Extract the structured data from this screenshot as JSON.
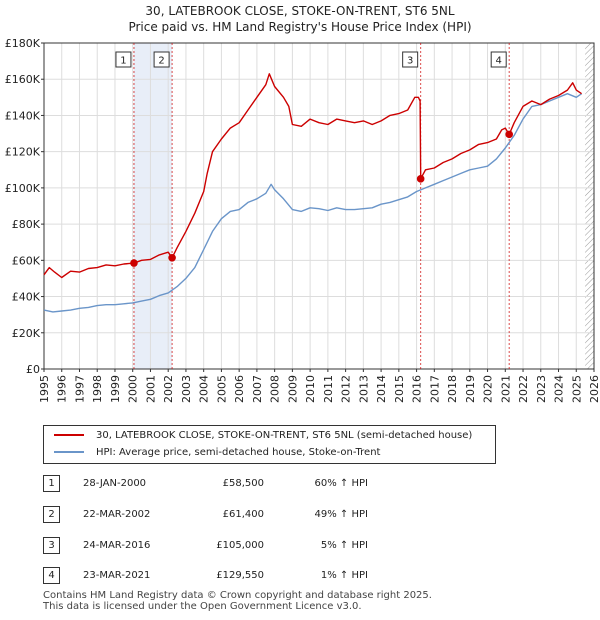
{
  "chart_data": {
    "type": "line",
    "title": "30, LATEBROOK CLOSE, STOKE-ON-TRENT, ST6 5NL",
    "subtitle": "Price paid vs. HM Land Registry's House Price Index (HPI)",
    "xlim": [
      1995,
      2026
    ],
    "ylim": [
      0,
      180000
    ],
    "y_ticks": [
      0,
      20000,
      40000,
      60000,
      80000,
      100000,
      120000,
      140000,
      160000,
      180000
    ],
    "y_tick_labels": [
      "£0",
      "£20K",
      "£40K",
      "£60K",
      "£80K",
      "£100K",
      "£120K",
      "£140K",
      "£160K",
      "£180K"
    ],
    "x_ticks": [
      1995,
      1996,
      1997,
      1998,
      1999,
      2000,
      2001,
      2002,
      2003,
      2004,
      2005,
      2006,
      2007,
      2008,
      2009,
      2010,
      2011,
      2012,
      2013,
      2014,
      2015,
      2016,
      2017,
      2018,
      2019,
      2020,
      2021,
      2022,
      2023,
      2024,
      2025,
      2026
    ],
    "grid": true,
    "colors": {
      "property": "#cc0000",
      "hpi": "#6a95c9",
      "band": "#e8eef8",
      "marker": "#cc0000",
      "vline": "#cc0000",
      "grid": "#dddddd"
    },
    "series": [
      {
        "name": "30, LATEBROOK CLOSE, STOKE-ON-TRENT, ST6 5NL (semi-detached house)",
        "color": "#cc0000",
        "points": [
          [
            1995.0,
            52000
          ],
          [
            1995.3,
            56000
          ],
          [
            1995.6,
            53500
          ],
          [
            1996.0,
            50500
          ],
          [
            1996.5,
            54000
          ],
          [
            1997.0,
            53500
          ],
          [
            1997.5,
            55500
          ],
          [
            1998.0,
            56000
          ],
          [
            1998.5,
            57500
          ],
          [
            1999.0,
            57000
          ],
          [
            1999.5,
            58000
          ],
          [
            2000.07,
            58500
          ],
          [
            2000.5,
            60000
          ],
          [
            2001.0,
            60500
          ],
          [
            2001.5,
            63000
          ],
          [
            2002.0,
            64500
          ],
          [
            2002.22,
            61400
          ],
          [
            2002.5,
            67000
          ],
          [
            2003.0,
            76000
          ],
          [
            2003.5,
            86000
          ],
          [
            2004.0,
            98000
          ],
          [
            2004.2,
            108000
          ],
          [
            2004.5,
            120000
          ],
          [
            2005.0,
            127000
          ],
          [
            2005.5,
            133000
          ],
          [
            2006.0,
            136000
          ],
          [
            2006.5,
            143000
          ],
          [
            2007.0,
            150000
          ],
          [
            2007.5,
            157000
          ],
          [
            2007.7,
            163000
          ],
          [
            2008.0,
            156000
          ],
          [
            2008.5,
            150000
          ],
          [
            2008.8,
            145000
          ],
          [
            2009.0,
            135000
          ],
          [
            2009.5,
            134000
          ],
          [
            2010.0,
            138000
          ],
          [
            2010.5,
            136000
          ],
          [
            2011.0,
            135000
          ],
          [
            2011.5,
            138000
          ],
          [
            2012.0,
            137000
          ],
          [
            2012.5,
            136000
          ],
          [
            2013.0,
            137000
          ],
          [
            2013.5,
            135000
          ],
          [
            2014.0,
            137000
          ],
          [
            2014.5,
            140000
          ],
          [
            2015.0,
            141000
          ],
          [
            2015.5,
            143000
          ],
          [
            2015.9,
            150000
          ],
          [
            2016.1,
            150000
          ],
          [
            2016.2,
            148000
          ],
          [
            2016.23,
            105000
          ],
          [
            2016.5,
            110000
          ],
          [
            2017.0,
            111000
          ],
          [
            2017.5,
            114000
          ],
          [
            2018.0,
            116000
          ],
          [
            2018.5,
            119000
          ],
          [
            2019.0,
            121000
          ],
          [
            2019.5,
            124000
          ],
          [
            2020.0,
            125000
          ],
          [
            2020.5,
            127000
          ],
          [
            2020.8,
            132000
          ],
          [
            2021.0,
            133000
          ],
          [
            2021.22,
            129550
          ],
          [
            2021.5,
            136000
          ],
          [
            2022.0,
            145000
          ],
          [
            2022.5,
            148000
          ],
          [
            2023.0,
            146000
          ],
          [
            2023.5,
            149000
          ],
          [
            2024.0,
            151000
          ],
          [
            2024.5,
            154000
          ],
          [
            2024.8,
            158000
          ],
          [
            2025.0,
            154000
          ],
          [
            2025.3,
            152000
          ]
        ]
      },
      {
        "name": "HPI: Average price, semi-detached house, Stoke-on-Trent",
        "color": "#6a95c9",
        "points": [
          [
            1995.0,
            32500
          ],
          [
            1995.5,
            31500
          ],
          [
            1996.0,
            32000
          ],
          [
            1996.5,
            32500
          ],
          [
            1997.0,
            33500
          ],
          [
            1997.5,
            34000
          ],
          [
            1998.0,
            35000
          ],
          [
            1998.5,
            35500
          ],
          [
            1999.0,
            35500
          ],
          [
            1999.5,
            36000
          ],
          [
            2000.0,
            36500
          ],
          [
            2000.5,
            37500
          ],
          [
            2001.0,
            38500
          ],
          [
            2001.5,
            40500
          ],
          [
            2002.0,
            42000
          ],
          [
            2002.5,
            45500
          ],
          [
            2003.0,
            50000
          ],
          [
            2003.5,
            56000
          ],
          [
            2004.0,
            66000
          ],
          [
            2004.5,
            76000
          ],
          [
            2005.0,
            83000
          ],
          [
            2005.5,
            87000
          ],
          [
            2006.0,
            88000
          ],
          [
            2006.5,
            92000
          ],
          [
            2007.0,
            94000
          ],
          [
            2007.5,
            97000
          ],
          [
            2007.8,
            102000
          ],
          [
            2008.0,
            99000
          ],
          [
            2008.5,
            94000
          ],
          [
            2009.0,
            88000
          ],
          [
            2009.5,
            87000
          ],
          [
            2010.0,
            89000
          ],
          [
            2010.5,
            88500
          ],
          [
            2011.0,
            87500
          ],
          [
            2011.5,
            89000
          ],
          [
            2012.0,
            88000
          ],
          [
            2012.5,
            88000
          ],
          [
            2013.0,
            88500
          ],
          [
            2013.5,
            89000
          ],
          [
            2014.0,
            91000
          ],
          [
            2014.5,
            92000
          ],
          [
            2015.0,
            93500
          ],
          [
            2015.5,
            95000
          ],
          [
            2016.0,
            98000
          ],
          [
            2016.5,
            100000
          ],
          [
            2017.0,
            102000
          ],
          [
            2017.5,
            104000
          ],
          [
            2018.0,
            106000
          ],
          [
            2018.5,
            108000
          ],
          [
            2019.0,
            110000
          ],
          [
            2019.5,
            111000
          ],
          [
            2020.0,
            112000
          ],
          [
            2020.5,
            116000
          ],
          [
            2021.0,
            122000
          ],
          [
            2021.5,
            129000
          ],
          [
            2022.0,
            138000
          ],
          [
            2022.5,
            145000
          ],
          [
            2023.0,
            146000
          ],
          [
            2023.5,
            148000
          ],
          [
            2024.0,
            150000
          ],
          [
            2024.5,
            152000
          ],
          [
            2025.0,
            150000
          ],
          [
            2025.3,
            152000
          ]
        ]
      }
    ],
    "shaded_bands": [
      [
        2000.07,
        2002.22
      ]
    ],
    "hatched_region": [
      2025.5,
      2026
    ],
    "sales": [
      {
        "id": "1",
        "x": 2000.07,
        "price": 58500,
        "date": "28-JAN-2000",
        "price_label": "£58,500",
        "hpi_label": "60% ↑ HPI"
      },
      {
        "id": "2",
        "x": 2002.22,
        "price": 61400,
        "date": "22-MAR-2002",
        "price_label": "£61,400",
        "hpi_label": "49% ↑ HPI"
      },
      {
        "id": "3",
        "x": 2016.23,
        "price": 105000,
        "date": "24-MAR-2016",
        "price_label": "£105,000",
        "hpi_label": "5% ↑ HPI"
      },
      {
        "id": "4",
        "x": 2021.22,
        "price": 129550,
        "date": "23-MAR-2021",
        "price_label": "£129,550",
        "hpi_label": "1% ↑ HPI"
      }
    ]
  },
  "legend": {
    "property_label": "30, LATEBROOK CLOSE, STOKE-ON-TRENT, ST6 5NL (semi-detached house)",
    "hpi_label": "HPI: Average price, semi-detached house, Stoke-on-Trent"
  },
  "footer": {
    "line1": "Contains HM Land Registry data © Crown copyright and database right 2025.",
    "line2": "This data is licensed under the Open Government Licence v3.0."
  }
}
